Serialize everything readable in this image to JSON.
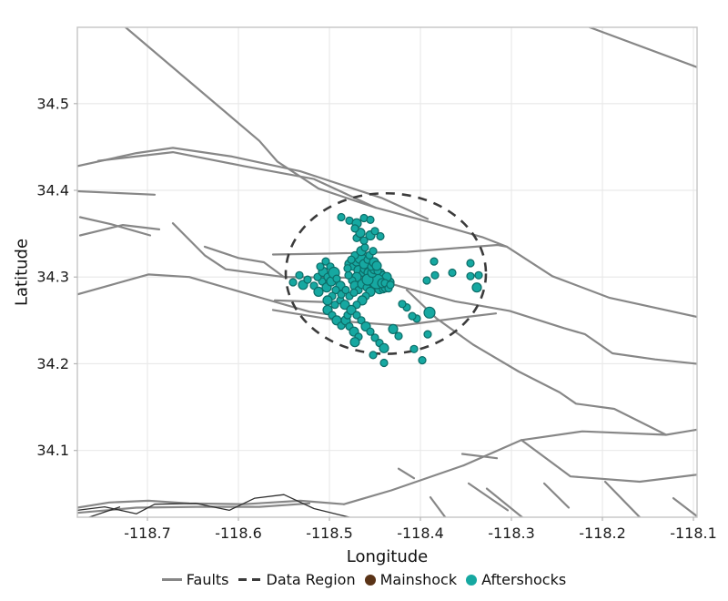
{
  "axes": {
    "xlabel": "Longitude",
    "ylabel": "Latitude",
    "x": {
      "min": -118.777,
      "max": -118.096,
      "ticks": [
        -118.7,
        -118.6,
        -118.5,
        -118.4,
        -118.3,
        -118.2,
        -118.1
      ],
      "tick_labels": [
        "-118.7",
        "-118.6",
        "-118.5",
        "-118.4",
        "-118.3",
        "-118.2",
        "-118.1"
      ]
    },
    "y": {
      "min": 34.023,
      "max": 34.588,
      "ticks": [
        34.1,
        34.2,
        34.3,
        34.4,
        34.5
      ],
      "tick_labels": [
        "34.1",
        "34.2",
        "34.3",
        "34.4",
        "34.5"
      ]
    }
  },
  "legend": {
    "items": [
      {
        "label": "Faults",
        "type": "line",
        "color": "#878787"
      },
      {
        "label": "Data Region",
        "type": "dashed",
        "color": "#3b3b3b"
      },
      {
        "label": "Mainshock",
        "type": "dot",
        "color": "#5a3317"
      },
      {
        "label": "Aftershocks",
        "type": "dot",
        "color": "#16a8a1"
      }
    ]
  },
  "colors": {
    "grid": "#e9e9e9",
    "spine": "#c4c4c4",
    "tick": "#b5b5b5",
    "tick_text": "#1a1a1a",
    "fault": "#878787",
    "dark_line": "#2f2f2f",
    "region": "#3b3b3b",
    "aftershock_fill": "#16a8a1",
    "aftershock_edge": "#0d6d68",
    "mainshock_fill": "#5a3317",
    "mainshock_edge": "#321b09"
  },
  "chart_data": {
    "type": "scatter",
    "title": "",
    "xlabel": "Longitude",
    "ylabel": "Latitude",
    "xlim": [
      -118.777,
      -118.096
    ],
    "ylim": [
      34.023,
      34.588
    ],
    "grid": true,
    "legend_position": "bottom-center",
    "data_region": {
      "center": [
        -118.438,
        34.304
      ],
      "radius_lon": 0.11,
      "radius_lat": 0.0926,
      "style": "dashed"
    },
    "mainshock": {
      "lon": -118.443,
      "lat": 34.297,
      "r": 7
    },
    "aftershocks": [
      [
        -118.449,
        34.297,
        6
      ],
      [
        -118.446,
        34.298,
        5
      ],
      [
        -118.443,
        34.296,
        7
      ],
      [
        -118.44,
        34.294,
        5
      ],
      [
        -118.447,
        34.293,
        6
      ],
      [
        -118.444,
        34.292,
        8
      ],
      [
        -118.441,
        34.297,
        5
      ],
      [
        -118.438,
        34.295,
        6
      ],
      [
        -118.445,
        34.3,
        5
      ],
      [
        -118.442,
        34.3,
        6
      ],
      [
        -118.439,
        34.298,
        4
      ],
      [
        -118.448,
        34.301,
        4
      ],
      [
        -118.451,
        34.295,
        5
      ],
      [
        -118.45,
        34.291,
        6
      ],
      [
        -118.446,
        34.289,
        5
      ],
      [
        -118.443,
        34.289,
        6
      ],
      [
        -118.44,
        34.29,
        7
      ],
      [
        -118.437,
        34.292,
        5
      ],
      [
        -118.436,
        34.297,
        4
      ],
      [
        -118.452,
        34.299,
        5
      ],
      [
        -118.455,
        34.296,
        4
      ],
      [
        -118.453,
        34.292,
        5
      ],
      [
        -118.449,
        34.288,
        4
      ],
      [
        -118.445,
        34.286,
        5
      ],
      [
        -118.441,
        34.286,
        4
      ],
      [
        -118.438,
        34.288,
        5
      ],
      [
        -118.435,
        34.29,
        4
      ],
      [
        -118.434,
        34.294,
        5
      ],
      [
        -118.447,
        34.302,
        4
      ],
      [
        -118.444,
        34.304,
        5
      ],
      [
        -118.441,
        34.302,
        4
      ],
      [
        -118.437,
        34.3,
        5
      ],
      [
        -118.45,
        34.304,
        4
      ],
      [
        -118.454,
        34.301,
        4
      ],
      [
        -118.456,
        34.292,
        4
      ],
      [
        -118.448,
        34.295,
        8
      ],
      [
        -118.442,
        34.293,
        5
      ],
      [
        -118.439,
        34.293,
        4
      ],
      [
        -118.435,
        34.287,
        4
      ],
      [
        -118.433,
        34.291,
        4
      ],
      [
        -118.478,
        34.315,
        5
      ],
      [
        -118.474,
        34.312,
        4
      ],
      [
        -118.47,
        34.318,
        5
      ],
      [
        -118.466,
        34.322,
        6
      ],
      [
        -118.472,
        34.325,
        4
      ],
      [
        -118.468,
        34.308,
        5
      ],
      [
        -118.463,
        34.305,
        4
      ],
      [
        -118.46,
        34.31,
        6
      ],
      [
        -118.457,
        34.305,
        5
      ],
      [
        -118.462,
        34.315,
        5
      ],
      [
        -118.458,
        34.32,
        4
      ],
      [
        -118.465,
        34.33,
        5
      ],
      [
        -118.461,
        34.334,
        4
      ],
      [
        -118.47,
        34.3,
        5
      ],
      [
        -118.475,
        34.296,
        4
      ],
      [
        -118.479,
        34.302,
        4
      ],
      [
        -118.472,
        34.29,
        5
      ],
      [
        -118.468,
        34.285,
        4
      ],
      [
        -118.464,
        34.292,
        5
      ],
      [
        -118.459,
        34.288,
        4
      ],
      [
        -118.455,
        34.283,
        5
      ],
      [
        -118.46,
        34.278,
        4
      ],
      [
        -118.464,
        34.273,
        5
      ],
      [
        -118.47,
        34.268,
        4
      ],
      [
        -118.458,
        34.297,
        6
      ],
      [
        -118.453,
        34.305,
        5
      ],
      [
        -118.45,
        34.31,
        6
      ],
      [
        -118.447,
        34.307,
        4
      ],
      [
        -118.454,
        34.312,
        4
      ],
      [
        -118.451,
        34.317,
        5
      ],
      [
        -118.456,
        34.325,
        4
      ],
      [
        -118.452,
        34.33,
        4
      ],
      [
        -118.448,
        34.313,
        5
      ],
      [
        -118.476,
        34.32,
        4
      ],
      [
        -118.48,
        34.31,
        4
      ],
      [
        -118.487,
        34.369,
        4
      ],
      [
        -118.478,
        34.365,
        4
      ],
      [
        -118.47,
        34.362,
        5
      ],
      [
        -118.462,
        34.368,
        4
      ],
      [
        -118.455,
        34.366,
        4
      ],
      [
        -118.47,
        34.345,
        4
      ],
      [
        -118.466,
        34.351,
        5
      ],
      [
        -118.472,
        34.356,
        4
      ],
      [
        -118.462,
        34.342,
        4
      ],
      [
        -118.455,
        34.348,
        5
      ],
      [
        -118.45,
        34.353,
        4
      ],
      [
        -118.444,
        34.347,
        4
      ],
      [
        -118.54,
        34.294,
        4
      ],
      [
        -118.533,
        34.302,
        4
      ],
      [
        -118.529,
        34.291,
        5
      ],
      [
        -118.524,
        34.297,
        4
      ],
      [
        -118.517,
        34.29,
        4
      ],
      [
        -118.512,
        34.283,
        5
      ],
      [
        -118.508,
        34.295,
        4
      ],
      [
        -118.503,
        34.288,
        5
      ],
      [
        -118.513,
        34.3,
        4
      ],
      [
        -118.507,
        34.306,
        5
      ],
      [
        -118.502,
        34.3,
        4
      ],
      [
        -118.498,
        34.295,
        5
      ],
      [
        -118.51,
        34.312,
        4
      ],
      [
        -118.504,
        34.318,
        4
      ],
      [
        -118.499,
        34.312,
        4
      ],
      [
        -118.495,
        34.305,
        6
      ],
      [
        -118.492,
        34.298,
        4
      ],
      [
        -118.488,
        34.29,
        5
      ],
      [
        -118.493,
        34.285,
        4
      ],
      [
        -118.497,
        34.278,
        4
      ],
      [
        -118.502,
        34.273,
        5
      ],
      [
        -118.494,
        34.268,
        4
      ],
      [
        -118.488,
        34.273,
        4
      ],
      [
        -118.483,
        34.268,
        5
      ],
      [
        -118.487,
        34.28,
        4
      ],
      [
        -118.482,
        34.285,
        4
      ],
      [
        -118.478,
        34.278,
        4
      ],
      [
        -118.473,
        34.282,
        4
      ],
      [
        -118.502,
        34.262,
        5
      ],
      [
        -118.497,
        34.256,
        4
      ],
      [
        -118.492,
        34.25,
        5
      ],
      [
        -118.487,
        34.244,
        4
      ],
      [
        -118.482,
        34.25,
        5
      ],
      [
        -118.478,
        34.243,
        4
      ],
      [
        -118.473,
        34.237,
        5
      ],
      [
        -118.468,
        34.231,
        4
      ],
      [
        -118.472,
        34.225,
        5
      ],
      [
        -118.48,
        34.256,
        4
      ],
      [
        -118.476,
        34.262,
        5
      ],
      [
        -118.47,
        34.256,
        4
      ],
      [
        -118.465,
        34.25,
        4
      ],
      [
        -118.46,
        34.243,
        5
      ],
      [
        -118.455,
        34.237,
        4
      ],
      [
        -118.45,
        34.23,
        4
      ],
      [
        -118.445,
        34.224,
        4
      ],
      [
        -118.44,
        34.218,
        5
      ],
      [
        -118.44,
        34.201,
        4
      ],
      [
        -118.407,
        34.217,
        4
      ],
      [
        -118.398,
        34.204,
        4
      ],
      [
        -118.392,
        34.234,
        4
      ],
      [
        -118.404,
        34.252,
        4
      ],
      [
        -118.43,
        34.24,
        5
      ],
      [
        -118.424,
        34.232,
        4
      ],
      [
        -118.452,
        34.21,
        4
      ],
      [
        -118.385,
        34.318,
        4
      ],
      [
        -118.365,
        34.305,
        4
      ],
      [
        -118.393,
        34.296,
        4
      ],
      [
        -118.384,
        34.302,
        4
      ],
      [
        -118.345,
        34.316,
        4
      ],
      [
        -118.345,
        34.301,
        4
      ],
      [
        -118.336,
        34.302,
        4
      ],
      [
        -118.338,
        34.288,
        5
      ],
      [
        -118.39,
        34.259,
        6
      ],
      [
        -118.409,
        34.255,
        4
      ],
      [
        -118.415,
        34.265,
        4
      ],
      [
        -118.42,
        34.269,
        4
      ]
    ],
    "faults": [
      [
        [
          -118.724,
          34.588
        ],
        [
          -118.577,
          34.457
        ],
        [
          -118.557,
          34.433
        ],
        [
          -118.512,
          34.402
        ],
        [
          -118.449,
          34.38
        ],
        [
          -118.392,
          34.364
        ],
        [
          -118.332,
          34.346
        ],
        [
          -118.305,
          34.335
        ],
        [
          -118.255,
          34.301
        ],
        [
          -118.192,
          34.276
        ],
        [
          -118.096,
          34.254
        ]
      ],
      [
        [
          -118.214,
          34.588
        ],
        [
          -118.096,
          34.542
        ]
      ],
      [
        [
          -118.777,
          34.428
        ],
        [
          -118.712,
          34.443
        ],
        [
          -118.672,
          34.449
        ],
        [
          -118.607,
          34.439
        ],
        [
          -118.532,
          34.422
        ],
        [
          -118.442,
          34.391
        ],
        [
          -118.392,
          34.367
        ]
      ],
      [
        [
          -118.754,
          34.434
        ],
        [
          -118.672,
          34.444
        ],
        [
          -118.594,
          34.428
        ],
        [
          -118.517,
          34.413
        ],
        [
          -118.449,
          34.38
        ]
      ],
      [
        [
          -118.777,
          34.399
        ],
        [
          -118.692,
          34.395
        ]
      ],
      [
        [
          -118.774,
          34.369
        ],
        [
          -118.74,
          34.361
        ],
        [
          -118.697,
          34.348
        ]
      ],
      [
        [
          -118.774,
          34.348
        ],
        [
          -118.727,
          34.36
        ],
        [
          -118.687,
          34.355
        ]
      ],
      [
        [
          -118.672,
          34.362
        ],
        [
          -118.637,
          34.325
        ],
        [
          -118.614,
          34.309
        ],
        [
          -118.55,
          34.3
        ]
      ],
      [
        [
          -118.637,
          34.335
        ],
        [
          -118.6,
          34.322
        ],
        [
          -118.572,
          34.317
        ],
        [
          -118.55,
          34.3
        ]
      ],
      [
        [
          -118.777,
          34.28
        ],
        [
          -118.699,
          34.303
        ],
        [
          -118.654,
          34.3
        ],
        [
          -118.572,
          34.275
        ],
        [
          -118.522,
          34.26
        ],
        [
          -118.502,
          34.257
        ]
      ],
      [
        [
          -118.562,
          34.262
        ],
        [
          -118.485,
          34.249
        ],
        [
          -118.422,
          34.244
        ],
        [
          -118.349,
          34.254
        ],
        [
          -118.317,
          34.258
        ]
      ],
      [
        [
          -118.55,
          34.3
        ],
        [
          -118.455,
          34.299
        ],
        [
          -118.415,
          34.287
        ],
        [
          -118.362,
          34.272
        ],
        [
          -118.302,
          34.261
        ],
        [
          -118.242,
          34.241
        ],
        [
          -118.219,
          34.234
        ],
        [
          -118.189,
          34.212
        ],
        [
          -118.142,
          34.205
        ],
        [
          -118.096,
          34.2
        ]
      ],
      [
        [
          -118.562,
          34.326
        ],
        [
          -118.502,
          34.327
        ],
        [
          -118.415,
          34.329
        ],
        [
          -118.315,
          34.337
        ],
        [
          -118.305,
          34.335
        ]
      ],
      [
        [
          -118.56,
          34.273
        ],
        [
          -118.5,
          34.271
        ]
      ],
      [
        [
          -118.415,
          34.285
        ],
        [
          -118.382,
          34.252
        ],
        [
          -118.342,
          34.222
        ],
        [
          -118.292,
          34.191
        ],
        [
          -118.247,
          34.167
        ],
        [
          -118.229,
          34.154
        ],
        [
          -118.187,
          34.148
        ],
        [
          -118.13,
          34.118
        ],
        [
          -118.096,
          34.124
        ]
      ],
      [
        [
          -118.484,
          34.038
        ],
        [
          -118.432,
          34.054
        ],
        [
          -118.352,
          34.083
        ],
        [
          -118.289,
          34.112
        ],
        [
          -118.222,
          34.122
        ],
        [
          -118.13,
          34.118
        ]
      ],
      [
        [
          -118.289,
          34.112
        ],
        [
          -118.235,
          34.07
        ],
        [
          -118.159,
          34.064
        ],
        [
          -118.096,
          34.072
        ]
      ],
      [
        [
          -118.777,
          34.034
        ],
        [
          -118.742,
          34.04
        ],
        [
          -118.699,
          34.042
        ],
        [
          -118.654,
          34.039
        ],
        [
          -118.594,
          34.038
        ],
        [
          -118.532,
          34.042
        ],
        [
          -118.484,
          34.038
        ]
      ],
      [
        [
          -118.777,
          34.028
        ],
        [
          -118.712,
          34.034
        ],
        [
          -118.647,
          34.035
        ],
        [
          -118.577,
          34.035
        ],
        [
          -118.522,
          34.039
        ]
      ],
      [
        [
          -118.389,
          34.046
        ],
        [
          -118.372,
          34.022
        ]
      ],
      [
        [
          -118.347,
          34.062
        ],
        [
          -118.304,
          34.031
        ]
      ],
      [
        [
          -118.327,
          34.056
        ],
        [
          -118.287,
          34.022
        ]
      ],
      [
        [
          -118.264,
          34.062
        ],
        [
          -118.237,
          34.034
        ]
      ],
      [
        [
          -118.197,
          34.064
        ],
        [
          -118.158,
          34.022
        ]
      ],
      [
        [
          -118.122,
          34.045
        ],
        [
          -118.096,
          34.024
        ]
      ],
      [
        [
          -118.354,
          34.096
        ],
        [
          -118.316,
          34.091
        ]
      ],
      [
        [
          -118.424,
          34.079
        ],
        [
          -118.407,
          34.068
        ]
      ]
    ],
    "dark_lines": [
      [
        [
          -118.777,
          34.031
        ],
        [
          -118.747,
          34.035
        ],
        [
          -118.712,
          34.027
        ],
        [
          -118.692,
          34.038
        ],
        [
          -118.647,
          34.039
        ],
        [
          -118.61,
          34.031
        ],
        [
          -118.582,
          34.045
        ],
        [
          -118.55,
          34.049
        ],
        [
          -118.517,
          34.033
        ],
        [
          -118.49,
          34.026
        ],
        [
          -118.474,
          34.022
        ]
      ],
      [
        [
          -118.767,
          34.022
        ],
        [
          -118.73,
          34.035
        ]
      ]
    ]
  }
}
